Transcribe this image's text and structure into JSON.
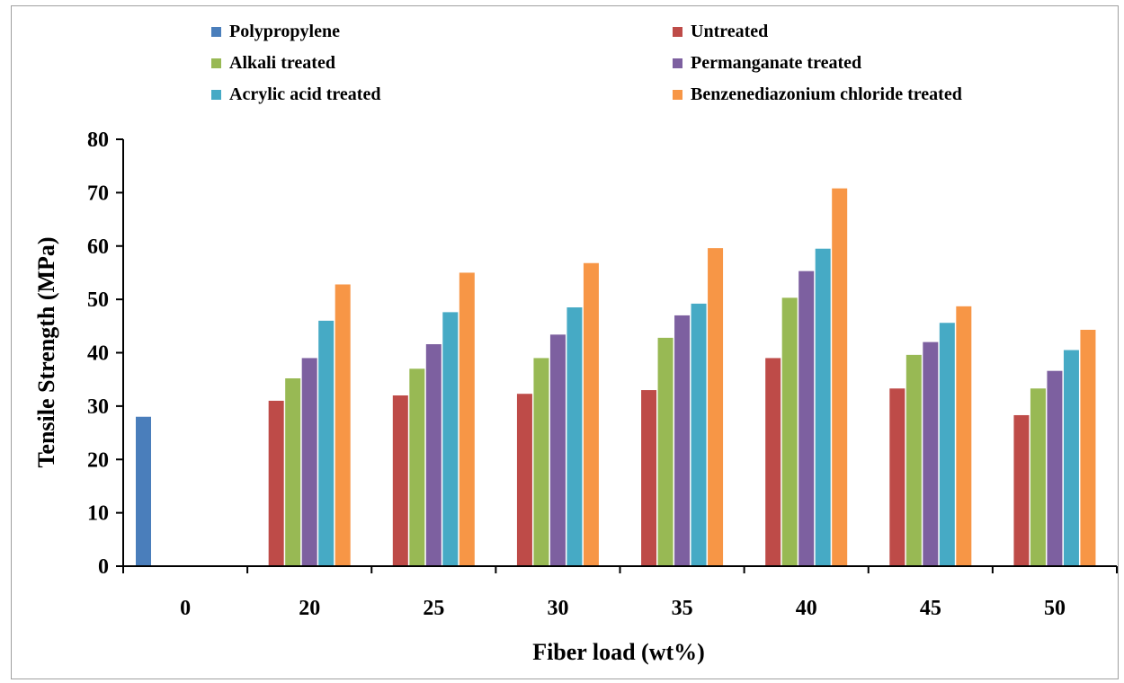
{
  "chart_data": {
    "type": "bar",
    "xlabel": "Fiber load (wt%)",
    "ylabel": "Tensile Strength (MPa)",
    "ylim": [
      0,
      80
    ],
    "yticks": [
      "0",
      "10",
      "20",
      "30",
      "40",
      "50",
      "60",
      "70",
      "80"
    ],
    "categories": [
      "0",
      "20",
      "25",
      "30",
      "35",
      "40",
      "45",
      "50"
    ],
    "grid": false,
    "legend_position": "top",
    "series": [
      {
        "name": "Polypropylene",
        "color": "#4a7ebb",
        "values": [
          28,
          null,
          null,
          null,
          null,
          null,
          null,
          null
        ]
      },
      {
        "name": "Untreated",
        "color": "#be4b48",
        "values": [
          null,
          31,
          32,
          32.3,
          33,
          39,
          33.3,
          28.3
        ]
      },
      {
        "name": "Alkali treated",
        "color": "#98b954",
        "values": [
          null,
          35.2,
          37,
          39,
          42.8,
          50.3,
          39.6,
          33.3
        ]
      },
      {
        "name": "Permanganate treated",
        "color": "#7d60a0",
        "values": [
          null,
          39,
          41.6,
          43.4,
          47,
          55.3,
          42,
          36.6
        ]
      },
      {
        "name": "Acrylic acid treated",
        "color": "#46aac5",
        "values": [
          null,
          46,
          47.6,
          48.5,
          49.2,
          59.5,
          45.6,
          40.5
        ]
      },
      {
        "name": "Benzenediazonium chloride treated",
        "color": "#f79646",
        "values": [
          null,
          52.8,
          55,
          56.8,
          59.6,
          70.8,
          48.7,
          44.3
        ]
      }
    ]
  }
}
